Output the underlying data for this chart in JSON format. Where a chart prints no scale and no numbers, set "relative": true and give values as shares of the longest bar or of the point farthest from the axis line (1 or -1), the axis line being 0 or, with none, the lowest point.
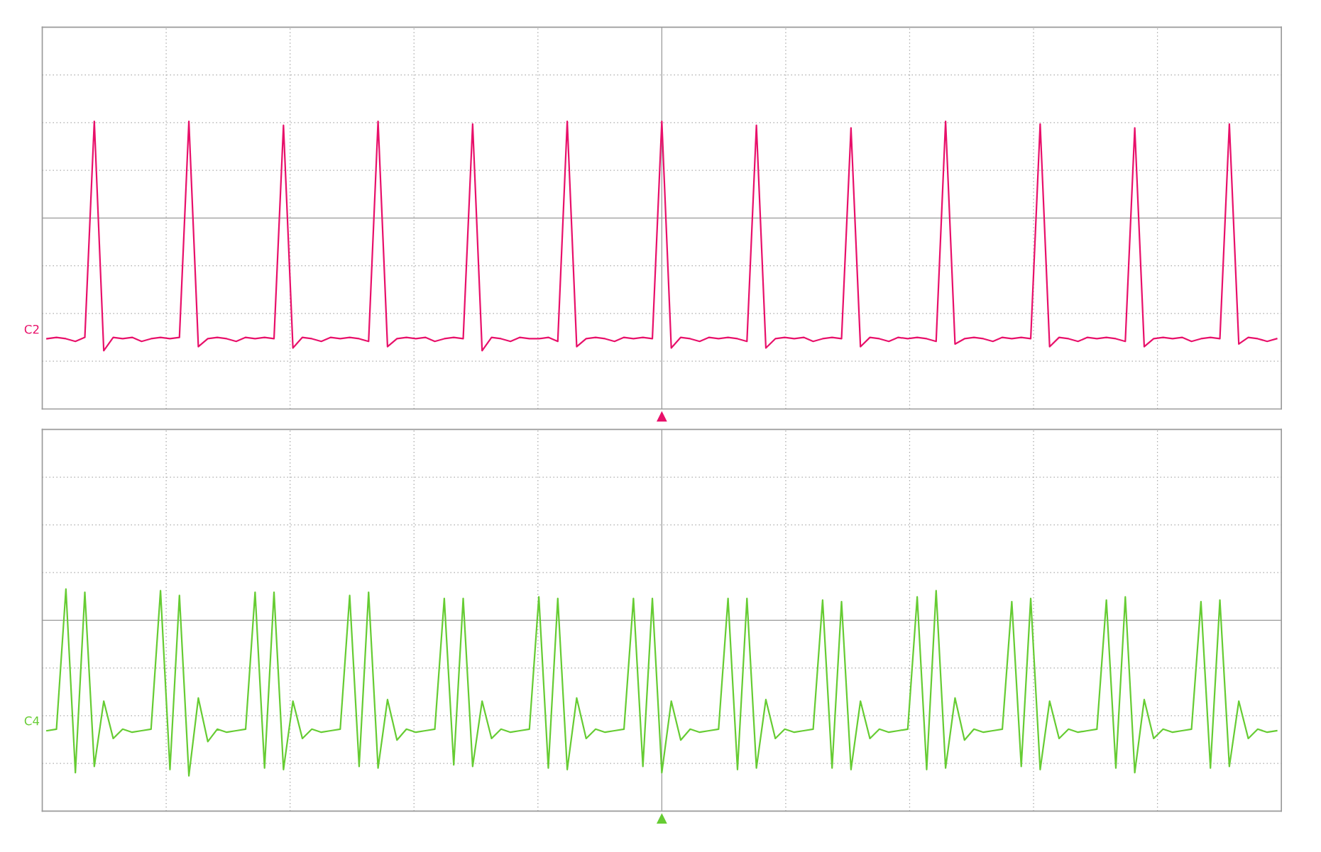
{
  "chart_data": [
    {
      "type": "line",
      "relative": true,
      "grid": true,
      "categories": [
        null,
        null,
        null,
        null,
        null,
        null,
        null,
        null,
        null,
        null,
        null,
        null,
        null,
        null,
        null,
        null,
        null,
        null,
        null,
        null,
        null,
        null,
        null,
        null,
        null,
        null,
        null,
        null,
        null,
        null,
        null,
        null,
        null,
        null,
        null,
        null,
        null,
        null,
        null,
        null,
        null,
        null,
        null,
        null,
        null,
        null,
        null,
        null,
        null,
        null,
        null,
        null,
        null,
        null,
        null,
        null,
        null,
        null,
        null,
        null,
        null,
        null,
        null,
        null,
        null,
        null,
        null,
        null,
        null,
        null,
        null,
        null,
        null,
        null,
        null,
        null,
        null,
        null,
        null,
        null,
        null,
        null,
        null,
        null,
        null,
        null,
        null,
        null,
        null,
        null,
        null,
        null,
        null,
        null,
        null,
        null,
        null,
        null,
        null,
        null,
        null,
        null,
        null,
        null,
        null,
        null,
        null,
        null,
        null,
        null,
        null,
        null,
        null,
        null,
        null,
        null,
        null,
        null,
        null,
        null,
        null,
        null,
        null,
        null,
        null,
        null,
        null,
        null,
        null,
        null,
        null
      ],
      "series": [
        {
          "name": "C2",
          "color": "#e8106a",
          "values": [
            -0.91,
            -0.9,
            -0.91,
            -0.93,
            -0.9,
            0.73,
            -1,
            -0.9,
            -0.91,
            -0.9,
            -0.93,
            -0.91,
            -0.9,
            -0.91,
            -0.9,
            0.73,
            -0.97,
            -0.91,
            -0.9,
            -0.91,
            -0.93,
            -0.9,
            -0.91,
            -0.9,
            -0.91,
            0.7,
            -0.98,
            -0.9,
            -0.91,
            -0.93,
            -0.9,
            -0.91,
            -0.9,
            -0.91,
            -0.93,
            0.73,
            -0.97,
            -0.91,
            -0.9,
            -0.91,
            -0.9,
            -0.93,
            -0.91,
            -0.9,
            -0.91,
            0.71,
            -1,
            -0.9,
            -0.91,
            -0.93,
            -0.9,
            -0.91,
            -0.91,
            -0.9,
            -0.93,
            0.73,
            -0.97,
            -0.91,
            -0.9,
            -0.91,
            -0.93,
            -0.9,
            -0.91,
            -0.9,
            -0.91,
            0.73,
            -0.98,
            -0.9,
            -0.91,
            -0.93,
            -0.9,
            -0.91,
            -0.9,
            -0.91,
            -0.93,
            0.7,
            -0.98,
            -0.91,
            -0.9,
            -0.91,
            -0.9,
            -0.93,
            -0.91,
            -0.9,
            -0.91,
            0.68,
            -0.97,
            -0.9,
            -0.91,
            -0.93,
            -0.9,
            -0.91,
            -0.9,
            -0.91,
            -0.93,
            0.73,
            -0.95,
            -0.91,
            -0.9,
            -0.91,
            -0.93,
            -0.9,
            -0.91,
            -0.9,
            -0.91,
            0.71,
            -0.97,
            -0.9,
            -0.91,
            -0.93,
            -0.9,
            -0.91,
            -0.9,
            -0.91,
            -0.93,
            0.68,
            -0.97,
            -0.91,
            -0.9,
            -0.91,
            -0.9,
            -0.93,
            -0.91,
            -0.9,
            -0.91,
            0.71,
            -0.95,
            -0.9,
            -0.91,
            -0.93,
            -0.91
          ]
        }
      ]
    },
    {
      "type": "line",
      "relative": true,
      "grid": true,
      "categories": [
        null,
        null,
        null,
        null,
        null,
        null,
        null,
        null,
        null,
        null,
        null,
        null,
        null,
        null,
        null,
        null,
        null,
        null,
        null,
        null,
        null,
        null,
        null,
        null,
        null,
        null,
        null,
        null,
        null,
        null,
        null,
        null,
        null,
        null,
        null,
        null,
        null,
        null,
        null,
        null,
        null,
        null,
        null,
        null,
        null,
        null,
        null,
        null,
        null,
        null,
        null,
        null,
        null,
        null,
        null,
        null,
        null,
        null,
        null,
        null,
        null,
        null,
        null,
        null,
        null,
        null,
        null,
        null,
        null,
        null,
        null,
        null,
        null,
        null,
        null,
        null,
        null,
        null,
        null,
        null,
        null,
        null,
        null,
        null,
        null,
        null,
        null,
        null,
        null,
        null,
        null,
        null,
        null,
        null,
        null,
        null,
        null,
        null,
        null,
        null,
        null,
        null,
        null,
        null,
        null,
        null,
        null,
        null,
        null,
        null,
        null,
        null,
        null,
        null,
        null,
        null,
        null,
        null,
        null,
        null,
        null,
        null,
        null,
        null,
        null,
        null,
        null,
        null,
        null,
        null,
        null
      ],
      "series": [
        {
          "name": "C4",
          "color": "#66cc33",
          "values": [
            -0.71,
            -0.7,
            0.2,
            -0.98,
            0.18,
            -0.94,
            -0.52,
            -0.76,
            -0.7,
            -0.72,
            -0.71,
            -0.7,
            0.19,
            -0.96,
            0.16,
            -1,
            -0.5,
            -0.78,
            -0.7,
            -0.72,
            -0.71,
            -0.7,
            0.18,
            -0.95,
            0.18,
            -0.96,
            -0.52,
            -0.76,
            -0.7,
            -0.72,
            -0.71,
            -0.7,
            0.16,
            -0.94,
            0.18,
            -0.95,
            -0.51,
            -0.77,
            -0.7,
            -0.72,
            -0.71,
            -0.7,
            0.14,
            -0.93,
            0.14,
            -0.94,
            -0.52,
            -0.76,
            -0.7,
            -0.72,
            -0.71,
            -0.7,
            0.15,
            -0.95,
            0.14,
            -0.96,
            -0.5,
            -0.76,
            -0.7,
            -0.72,
            -0.71,
            -0.7,
            0.14,
            -0.94,
            0.14,
            -0.98,
            -0.52,
            -0.77,
            -0.7,
            -0.72,
            -0.71,
            -0.7,
            0.14,
            -0.96,
            0.14,
            -0.95,
            -0.51,
            -0.76,
            -0.7,
            -0.72,
            -0.71,
            -0.7,
            0.13,
            -0.95,
            0.12,
            -0.96,
            -0.52,
            -0.76,
            -0.7,
            -0.72,
            -0.71,
            -0.7,
            0.15,
            -0.96,
            0.19,
            -0.95,
            -0.5,
            -0.77,
            -0.7,
            -0.72,
            -0.71,
            -0.7,
            0.12,
            -0.94,
            0.14,
            -0.96,
            -0.52,
            -0.76,
            -0.7,
            -0.72,
            -0.71,
            -0.7,
            0.13,
            -0.95,
            0.15,
            -0.98,
            -0.51,
            -0.76,
            -0.7,
            -0.72,
            -0.71,
            -0.7,
            0.12,
            -0.95,
            0.13,
            -0.94,
            -0.52,
            -0.76,
            -0.7,
            -0.72,
            -0.71
          ]
        }
      ]
    }
  ]
}
